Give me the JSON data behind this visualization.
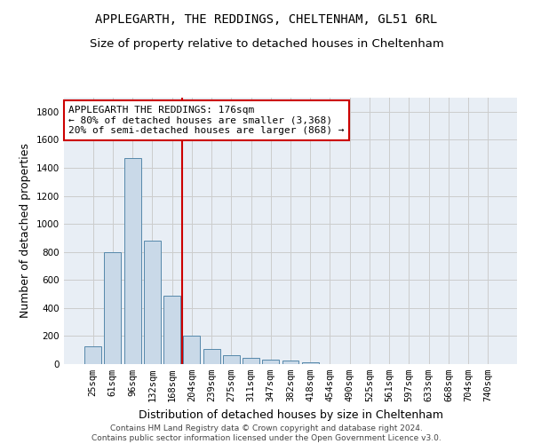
{
  "title1": "APPLEGARTH, THE REDDINGS, CHELTENHAM, GL51 6RL",
  "title2": "Size of property relative to detached houses in Cheltenham",
  "xlabel": "Distribution of detached houses by size in Cheltenham",
  "ylabel": "Number of detached properties",
  "footer1": "Contains HM Land Registry data © Crown copyright and database right 2024.",
  "footer2": "Contains public sector information licensed under the Open Government Licence v3.0.",
  "categories": [
    "25sqm",
    "61sqm",
    "96sqm",
    "132sqm",
    "168sqm",
    "204sqm",
    "239sqm",
    "275sqm",
    "311sqm",
    "347sqm",
    "382sqm",
    "418sqm",
    "454sqm",
    "490sqm",
    "525sqm",
    "561sqm",
    "597sqm",
    "633sqm",
    "668sqm",
    "704sqm",
    "740sqm"
  ],
  "values": [
    125,
    800,
    1470,
    880,
    490,
    205,
    105,
    65,
    45,
    32,
    28,
    12,
    0,
    0,
    0,
    0,
    0,
    0,
    0,
    0,
    0
  ],
  "bar_color": "#c9d9e8",
  "bar_edge_color": "#5588aa",
  "vline_pos": 4.5,
  "annotation_line1": "APPLEGARTH THE REDDINGS: 176sqm",
  "annotation_line2": "← 80% of detached houses are smaller (3,368)",
  "annotation_line3": "20% of semi-detached houses are larger (868) →",
  "ylim": [
    0,
    1900
  ],
  "yticks": [
    0,
    200,
    400,
    600,
    800,
    1000,
    1200,
    1400,
    1600,
    1800
  ],
  "grid_color": "#cccccc",
  "vline_color": "#cc0000",
  "box_edge_color": "#cc0000",
  "bg_color": "#e8eef5",
  "title_fontsize": 10,
  "subtitle_fontsize": 9.5,
  "axis_label_fontsize": 9,
  "tick_fontsize": 7.5,
  "annotation_fontsize": 8
}
